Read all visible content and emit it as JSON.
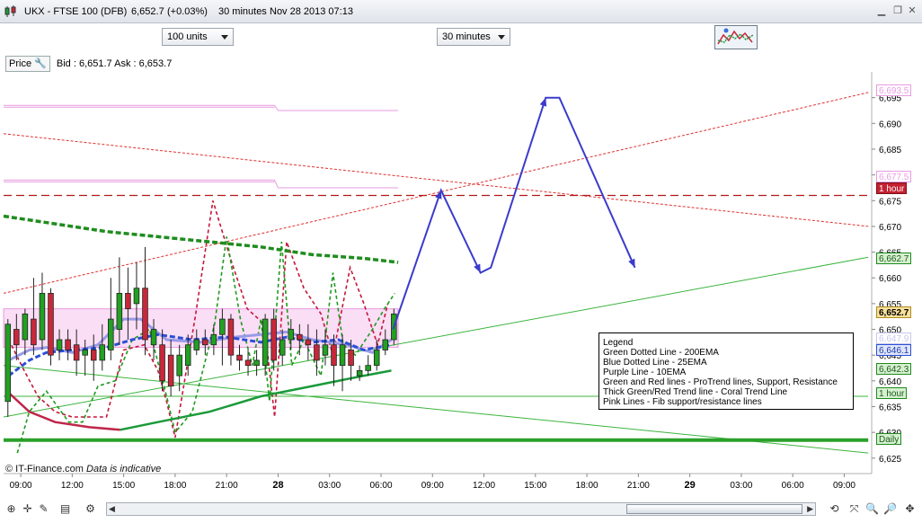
{
  "window": {
    "instrument": "UKX - FTSE 100 (DFB)",
    "price": "6,652.7",
    "change": "(+0.03%)",
    "interval": "30 minutes",
    "datetime": "Nov 28 2013 07:13"
  },
  "toolbar": {
    "units_select": "100 units",
    "interval_select": "30 minutes"
  },
  "pricebar": {
    "price_label": "Price",
    "bid": "Bid : 6,651.7",
    "ask": "Ask : 6,653.7"
  },
  "legend": {
    "title": "Legend",
    "lines": [
      "Green Dotted Line - 200EMA",
      "Blue Dotted Line - 25EMA",
      "Purple Line - 10EMA",
      "Green and Red lines - ProTrend lines, Support, Resistance",
      "Thick Green/Red Trend line - Coral Trend Line",
      "Pink Lines - Fib support/resistance lines"
    ]
  },
  "watermark": {
    "brand": "© IT-Finance.com",
    "note": "Data is indicative"
  },
  "tags": {
    "t1": "6,693.5",
    "t2": "6,677.5",
    "t3": "1 hour",
    "t4": "6,662.7",
    "t5": "6,652.7",
    "t6": "6,647.9",
    "t7": "6,646.1",
    "t8": "6,642.3",
    "t9": "1 hour",
    "t10": "Daily"
  },
  "colors": {
    "up": "#22a022",
    "down": "#c8283a",
    "projection": "#3b3bcc",
    "fib": "#e89be0",
    "ema200": "#1e8c1e",
    "ema25": "#2a4fd8",
    "ema10": "#9a9ae8",
    "coral_down": "#c0264a",
    "coral_up": "#1a9a3a"
  },
  "chart_data": {
    "type": "candlestick",
    "title": "UKX - FTSE 100 (DFB) 30 minutes",
    "y_range": [
      6622,
      6700
    ],
    "y_ticks": [
      6625,
      6630,
      6635,
      6640,
      6645,
      6650,
      6655,
      6660,
      6665,
      6670,
      6675,
      6680,
      6685,
      6690,
      6695
    ],
    "x_ticks": [
      "09:00",
      "12:00",
      "15:00",
      "18:00",
      "21:00",
      "28",
      "03:00",
      "06:00",
      "09:00",
      "12:00",
      "15:00",
      "18:00",
      "21:00",
      "29",
      "03:00",
      "06:00",
      "09:00"
    ],
    "x_tick_hours": [
      9,
      12,
      15,
      18,
      21,
      24,
      27,
      30,
      33,
      36,
      39,
      42,
      45,
      48,
      51,
      54,
      57
    ],
    "x_range_hours": [
      8,
      58.6
    ],
    "candles": [
      {
        "h": 8.25,
        "o": 6636,
        "c": 6651,
        "hi": 6652,
        "lo": 6633
      },
      {
        "h": 8.75,
        "o": 6650,
        "c": 6647,
        "hi": 6653,
        "lo": 6644
      },
      {
        "h": 9.25,
        "o": 6648,
        "c": 6653,
        "hi": 6654,
        "lo": 6645
      },
      {
        "h": 9.75,
        "o": 6652,
        "c": 6647,
        "hi": 6660,
        "lo": 6645
      },
      {
        "h": 10.25,
        "o": 6648,
        "c": 6657,
        "hi": 6661,
        "lo": 6646
      },
      {
        "h": 10.75,
        "o": 6657,
        "c": 6645,
        "hi": 6658,
        "lo": 6643
      },
      {
        "h": 11.25,
        "o": 6646,
        "c": 6648,
        "hi": 6650,
        "lo": 6644
      },
      {
        "h": 11.75,
        "o": 6648,
        "c": 6646,
        "hi": 6650,
        "lo": 6644
      },
      {
        "h": 12.25,
        "o": 6647,
        "c": 6644,
        "hi": 6650,
        "lo": 6641
      },
      {
        "h": 12.75,
        "o": 6645,
        "c": 6646,
        "hi": 6648,
        "lo": 6641
      },
      {
        "h": 13.25,
        "o": 6646,
        "c": 6644,
        "hi": 6649,
        "lo": 6640
      },
      {
        "h": 13.75,
        "o": 6644,
        "c": 6647,
        "hi": 6651,
        "lo": 6642
      },
      {
        "h": 14.25,
        "o": 6646,
        "c": 6652,
        "hi": 6660,
        "lo": 6644
      },
      {
        "h": 14.75,
        "o": 6650,
        "c": 6657,
        "hi": 6664,
        "lo": 6647
      },
      {
        "h": 15.25,
        "o": 6657,
        "c": 6654,
        "hi": 6662,
        "lo": 6648
      },
      {
        "h": 15.75,
        "o": 6655,
        "c": 6658,
        "hi": 6663,
        "lo": 6650
      },
      {
        "h": 16.25,
        "o": 6658,
        "c": 6648,
        "hi": 6666,
        "lo": 6645
      },
      {
        "h": 16.75,
        "o": 6647,
        "c": 6650,
        "hi": 6652,
        "lo": 6644
      },
      {
        "h": 17.25,
        "o": 6647,
        "c": 6640,
        "hi": 6650,
        "lo": 6638
      },
      {
        "h": 17.75,
        "o": 6645,
        "c": 6639,
        "hi": 6648,
        "lo": 6637
      },
      {
        "h": 18.25,
        "o": 6641,
        "c": 6645,
        "hi": 6647,
        "lo": 6638
      },
      {
        "h": 18.75,
        "o": 6643,
        "c": 6647,
        "hi": 6649,
        "lo": 6641
      },
      {
        "h": 19.25,
        "o": 6646,
        "c": 6648,
        "hi": 6650,
        "lo": 6645
      },
      {
        "h": 19.75,
        "o": 6648,
        "c": 6647,
        "hi": 6650,
        "lo": 6645
      },
      {
        "h": 20.25,
        "o": 6647,
        "c": 6649,
        "hi": 6651,
        "lo": 6645
      },
      {
        "h": 20.75,
        "o": 6649,
        "c": 6652,
        "hi": 6654,
        "lo": 6643
      },
      {
        "h": 21.25,
        "o": 6652,
        "c": 6645,
        "hi": 6653,
        "lo": 6643
      },
      {
        "h": 21.75,
        "o": 6645,
        "c": 6644,
        "hi": 6647,
        "lo": 6642
      },
      {
        "h": 22.25,
        "o": 6644,
        "c": 6643,
        "hi": 6646,
        "lo": 6641
      },
      {
        "h": 22.75,
        "o": 6643,
        "c": 6644,
        "hi": 6646,
        "lo": 6641
      },
      {
        "h": 23.25,
        "o": 6643,
        "c": 6652,
        "hi": 6653,
        "lo": 6641
      },
      {
        "h": 23.75,
        "o": 6652,
        "c": 6644,
        "hi": 6654,
        "lo": 6642
      },
      {
        "h": 24.25,
        "o": 6645,
        "c": 6648,
        "hi": 6650,
        "lo": 6643
      },
      {
        "h": 24.75,
        "o": 6648,
        "c": 6650,
        "hi": 6652,
        "lo": 6646
      },
      {
        "h": 25.25,
        "o": 6649,
        "c": 6648,
        "hi": 6651,
        "lo": 6645
      },
      {
        "h": 25.75,
        "o": 6648,
        "c": 6647,
        "hi": 6651,
        "lo": 6644
      },
      {
        "h": 26.25,
        "o": 6647,
        "c": 6644,
        "hi": 6650,
        "lo": 6641
      },
      {
        "h": 26.75,
        "o": 6645,
        "c": 6647,
        "hi": 6650,
        "lo": 6643
      },
      {
        "h": 27.25,
        "o": 6647,
        "c": 6643,
        "hi": 6649,
        "lo": 6639
      },
      {
        "h": 27.75,
        "o": 6643,
        "c": 6647,
        "hi": 6649,
        "lo": 6638
      },
      {
        "h": 28.25,
        "o": 6646,
        "c": 6643,
        "hi": 6648,
        "lo": 6640
      },
      {
        "h": 28.75,
        "o": 6641,
        "c": 6642,
        "hi": 6643,
        "lo": 6640
      },
      {
        "h": 29.25,
        "o": 6642,
        "c": 6643,
        "hi": 6645,
        "lo": 6641
      },
      {
        "h": 29.75,
        "o": 6643,
        "c": 6646,
        "hi": 6648,
        "lo": 6642
      },
      {
        "h": 30.25,
        "o": 6646,
        "c": 6648,
        "hi": 6650,
        "lo": 6645
      },
      {
        "h": 30.75,
        "o": 6648,
        "c": 6653,
        "hi": 6654,
        "lo": 6647
      }
    ],
    "ema200": [
      [
        8.0,
        6672
      ],
      [
        11.0,
        6670.5
      ],
      [
        14.0,
        6669
      ],
      [
        17.0,
        6668
      ],
      [
        20.0,
        6667
      ],
      [
        23.0,
        6666
      ],
      [
        26.0,
        6664.5
      ],
      [
        29.0,
        6663.8
      ],
      [
        31.0,
        6663
      ]
    ],
    "ema25": [
      [
        8.3,
        6641
      ],
      [
        9.5,
        6644
      ],
      [
        10.5,
        6645.5
      ],
      [
        12.0,
        6646
      ],
      [
        14.0,
        6646.5
      ],
      [
        15.5,
        6648
      ],
      [
        17.0,
        6649
      ],
      [
        19.0,
        6648
      ],
      [
        21.0,
        6648.5
      ],
      [
        23.0,
        6647.5
      ],
      [
        24.5,
        6648.5
      ],
      [
        26.0,
        6647.5
      ],
      [
        27.5,
        6648
      ],
      [
        29.0,
        6646
      ],
      [
        30.6,
        6647
      ]
    ],
    "ema10": [
      [
        8.3,
        6644
      ],
      [
        9.5,
        6646
      ],
      [
        10.5,
        6646.5
      ],
      [
        12.0,
        6645.5
      ],
      [
        13.5,
        6647
      ],
      [
        15.0,
        6652
      ],
      [
        16.0,
        6652
      ],
      [
        17.5,
        6648
      ],
      [
        19.5,
        6647.5
      ],
      [
        21.5,
        6648.5
      ],
      [
        23.0,
        6649
      ],
      [
        24.5,
        6649.5
      ],
      [
        26.0,
        6648
      ],
      [
        28.0,
        6647
      ],
      [
        29.5,
        6645.5
      ],
      [
        30.6,
        6648
      ]
    ],
    "coral_red": [
      [
        8.2,
        6638
      ],
      [
        9.5,
        6634
      ],
      [
        11.0,
        6632
      ],
      [
        13.0,
        6631
      ],
      [
        14.8,
        6630.5
      ]
    ],
    "coral_green": [
      [
        14.8,
        6630.5
      ],
      [
        17.0,
        6632
      ],
      [
        20.0,
        6634
      ],
      [
        23.0,
        6637
      ],
      [
        26.0,
        6639
      ],
      [
        29.0,
        6641
      ],
      [
        30.6,
        6642
      ]
    ],
    "dotted_green_200": [
      [
        8.8,
        6626
      ],
      [
        9.5,
        6634
      ],
      [
        10.5,
        6638
      ],
      [
        11.8,
        6632
      ],
      [
        12.6,
        6632
      ],
      [
        13.5,
        6639
      ],
      [
        14.5,
        6640
      ],
      [
        15.5,
        6648
      ],
      [
        16.5,
        6650
      ],
      [
        17.5,
        6637
      ],
      [
        18.0,
        6630
      ],
      [
        19.0,
        6634
      ],
      [
        20.3,
        6651
      ],
      [
        21.0,
        6668
      ],
      [
        21.8,
        6652
      ],
      [
        22.5,
        6643
      ],
      [
        23.0,
        6652
      ],
      [
        23.5,
        6636
      ],
      [
        24.2,
        6667
      ],
      [
        24.8,
        6643
      ],
      [
        25.5,
        6648
      ],
      [
        26.5,
        6641
      ],
      [
        27.2,
        6661
      ],
      [
        27.8,
        6647
      ],
      [
        28.5,
        6645
      ],
      [
        29.5,
        6650
      ],
      [
        30.2,
        6654
      ],
      [
        30.8,
        6657
      ]
    ],
    "dotted_red_swing": [
      [
        8.3,
        6648
      ],
      [
        9.2,
        6642
      ],
      [
        10.0,
        6637
      ],
      [
        11.0,
        6634
      ],
      [
        12.0,
        6633
      ],
      [
        13.0,
        6633
      ],
      [
        14.0,
        6633
      ],
      [
        15.0,
        6646
      ],
      [
        16.2,
        6647
      ],
      [
        17.0,
        6642
      ],
      [
        17.5,
        6636
      ],
      [
        18.0,
        6629
      ],
      [
        19.2,
        6653
      ],
      [
        20.2,
        6675
      ],
      [
        21.2,
        6664
      ],
      [
        22.2,
        6654
      ],
      [
        23.2,
        6651
      ],
      [
        23.8,
        6633
      ],
      [
        24.5,
        6667
      ],
      [
        25.5,
        6658
      ],
      [
        26.5,
        6653
      ],
      [
        27.2,
        6645
      ],
      [
        28.2,
        6662
      ],
      [
        29.0,
        6655
      ],
      [
        29.8,
        6647
      ],
      [
        30.4,
        6655
      ]
    ],
    "projection": [
      [
        30.7,
        6650
      ],
      [
        33.5,
        6677
      ],
      [
        35.8,
        6661
      ],
      [
        36.4,
        6662
      ],
      [
        39.6,
        6695
      ],
      [
        40.4,
        6695
      ],
      [
        44.8,
        6662
      ]
    ],
    "resistance_lines": [
      {
        "from": [
          8.0,
          6688
        ],
        "to": [
          58.4,
          6670
        ],
        "style": "dotted-red"
      },
      {
        "from": [
          8.0,
          6657
        ],
        "to": [
          58.4,
          6696
        ],
        "style": "dotted-red"
      },
      {
        "from": [
          8.0,
          6676
        ],
        "to": [
          58.4,
          6676
        ],
        "style": "dashed-darkred"
      }
    ],
    "support_lines": [
      {
        "from": [
          8.0,
          6643
        ],
        "to": [
          58.4,
          6626
        ],
        "style": "solid-green"
      },
      {
        "from": [
          8.0,
          6633
        ],
        "to": [
          58.4,
          6664
        ],
        "style": "solid-green"
      },
      {
        "from": [
          8.0,
          6637
        ],
        "to": [
          58.4,
          6637
        ],
        "style": "solid-green-thin"
      },
      {
        "from": [
          8.0,
          6628.5
        ],
        "to": [
          58.4,
          6628.5
        ],
        "style": "thick-green"
      }
    ],
    "fib_lines": [
      {
        "level_start": 6693.5,
        "level_end": 6692.5,
        "split_hour": 24.0
      },
      {
        "level_start": 6679,
        "level_end": 6677.5,
        "split_hour": 24.0
      }
    ],
    "fib_band": {
      "low": 6646.5,
      "high": 6654,
      "end_hour": 31.0
    }
  }
}
